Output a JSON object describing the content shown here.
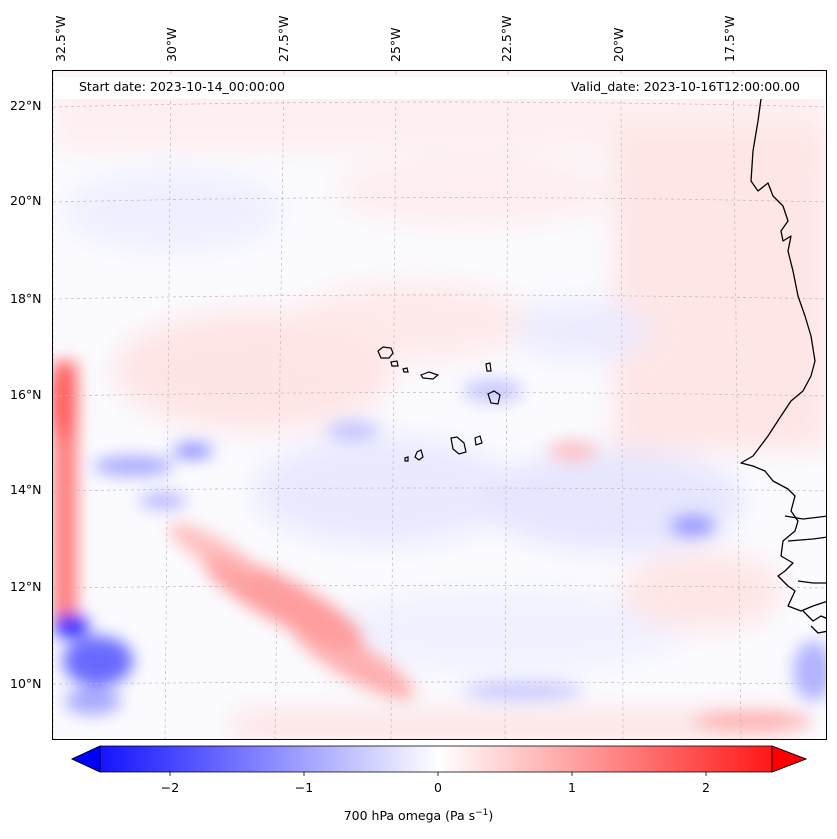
{
  "map": {
    "start_date": "Start date: 2023-10-14_00:00:00",
    "valid_date": "Valid_date: 2023-10-16T12:00:00.00",
    "lat_labels": [
      "22°N",
      "20°N",
      "18°N",
      "16°N",
      "14°N",
      "12°N",
      "10°N"
    ],
    "lon_labels": [
      "32.5°W",
      "30°W",
      "27.5°W",
      "25°W",
      "22.5°W",
      "20°W",
      "17.5°W"
    ],
    "field": "700 hPa omega",
    "colormap": "bwr"
  },
  "colorbar": {
    "ticks": [
      "−2",
      "−1",
      "0",
      "1",
      "2"
    ],
    "tick_values": [
      -2,
      -1,
      0,
      1,
      2
    ],
    "range": [
      -2.5,
      2.5
    ],
    "label_main": "700 hPa omega (Pa s",
    "label_exp": "−1",
    "label_end": ")"
  },
  "colors": {
    "negative": "#0000ff",
    "positive": "#ff0000",
    "neutral": "#ffffff",
    "coastline": "#000000",
    "gridline": "#bbbbbb"
  }
}
